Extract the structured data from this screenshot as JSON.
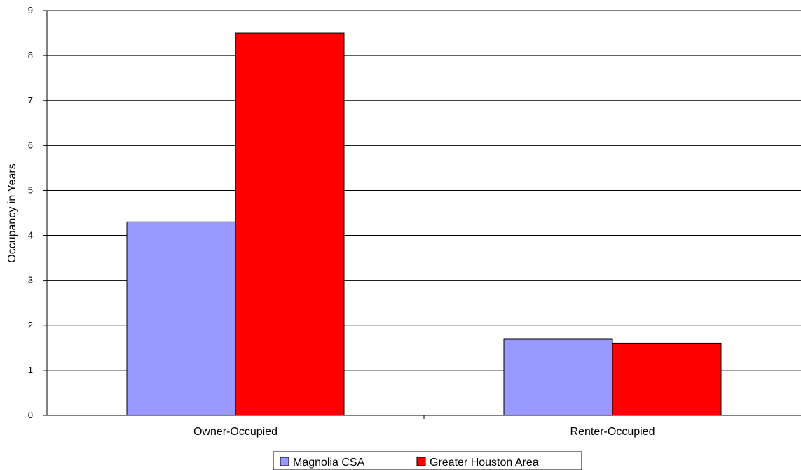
{
  "chart_data": {
    "type": "bar",
    "title": "",
    "xlabel": "",
    "ylabel": "Occupancy in Years",
    "categories": [
      "Owner-Occupied",
      "Renter-Occupied"
    ],
    "series": [
      {
        "name": "Magnolia CSA",
        "values": [
          4.3,
          1.7
        ],
        "color": "#9999ff"
      },
      {
        "name": "Greater Houston Area",
        "values": [
          8.5,
          1.6
        ],
        "color": "#ff0000"
      }
    ],
    "ylim": [
      0,
      9
    ],
    "yticks": [
      "0",
      "1",
      "2",
      "3",
      "4",
      "5",
      "6",
      "7",
      "8",
      "9"
    ],
    "grid": true,
    "legend_position": "bottom"
  }
}
